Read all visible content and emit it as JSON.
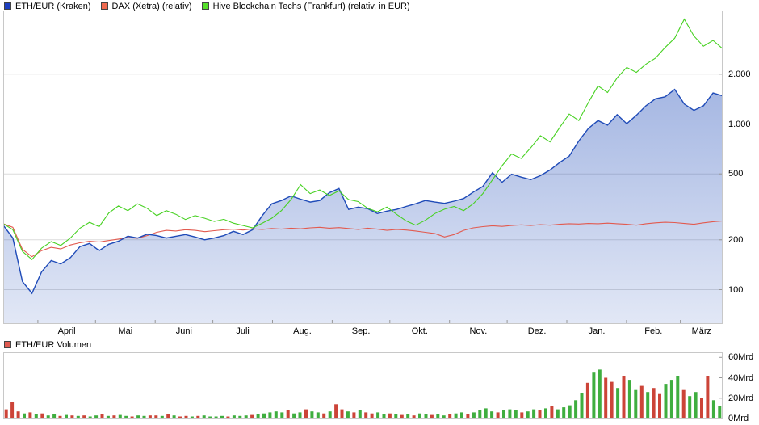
{
  "colors": {
    "grid": "#dcdcdc",
    "border": "#c8c8c8",
    "tick": "#999999"
  },
  "legend_main": {
    "items": [
      {
        "label": "ETH/EUR (Kraken)",
        "color": "#1d3fc0"
      },
      {
        "label": "DAX (Xetra) (relativ)",
        "color": "#f06a50"
      },
      {
        "label": "Hive Blockchain Techs (Frankfurt) (relativ, in EUR)",
        "color": "#55e02a"
      }
    ]
  },
  "legend_volume": {
    "items": [
      {
        "label": "ETH/EUR Volumen",
        "color": "#e05a50"
      }
    ]
  },
  "chart_data": [
    {
      "type": "line",
      "title": "",
      "scale": "log",
      "grid": "horizontal-only",
      "legend_position": "top",
      "y_axis": {
        "side": "right",
        "min": 62,
        "max": 4850,
        "ticks": [
          {
            "value": 100,
            "label": "100"
          },
          {
            "value": 200,
            "label": "200"
          },
          {
            "value": 500,
            "label": "500"
          },
          {
            "value": 1000,
            "label": "1.000"
          },
          {
            "value": 2000,
            "label": "2.000"
          }
        ]
      },
      "x_axis": {
        "labels": [
          {
            "label": "April",
            "pos": 0.0882
          },
          {
            "label": "Mai",
            "pos": 0.1698
          },
          {
            "label": "Juni",
            "pos": 0.2513
          },
          {
            "label": "Juli",
            "pos": 0.3329
          },
          {
            "label": "Aug.",
            "pos": 0.4158
          },
          {
            "label": "Sep.",
            "pos": 0.4973
          },
          {
            "label": "Okt.",
            "pos": 0.5789
          },
          {
            "label": "Nov.",
            "pos": 0.6604
          },
          {
            "label": "Dez.",
            "pos": 0.742
          },
          {
            "label": "Jan.",
            "pos": 0.8249
          },
          {
            "label": "Feb.",
            "pos": 0.9038
          },
          {
            "label": "März",
            "pos": 0.9706
          }
        ],
        "boundaries": [
          0.0481,
          0.1283,
          0.2112,
          0.2914,
          0.3743,
          0.4572,
          0.5374,
          0.6203,
          0.7005,
          0.7834,
          0.8663,
          0.9412
        ]
      },
      "series": [
        {
          "name": "ETH/EUR (Kraken)",
          "style": "area",
          "color": "#1f4bb8",
          "values": [
            245,
            205,
            112,
            95,
            128,
            150,
            143,
            156,
            182,
            190,
            172,
            188,
            196,
            210,
            205,
            216,
            212,
            205,
            210,
            215,
            208,
            200,
            205,
            212,
            225,
            215,
            230,
            280,
            330,
            345,
            368,
            352,
            338,
            345,
            385,
            408,
            305,
            315,
            308,
            288,
            298,
            305,
            318,
            330,
            345,
            338,
            332,
            342,
            355,
            388,
            420,
            508,
            445,
            498,
            478,
            462,
            488,
            528,
            585,
            640,
            790,
            940,
            1050,
            985,
            1140,
            1005,
            1130,
            1290,
            1420,
            1460,
            1620,
            1320,
            1210,
            1290,
            1540,
            1480
          ]
        },
        {
          "name": "DAX (Xetra) (relativ)",
          "style": "line",
          "color": "#e25a4f",
          "values": [
            250,
            238,
            175,
            158,
            172,
            180,
            176,
            186,
            192,
            196,
            194,
            198,
            202,
            206,
            204,
            212,
            222,
            228,
            226,
            230,
            228,
            224,
            227,
            230,
            232,
            229,
            233,
            231,
            234,
            232,
            235,
            233,
            236,
            238,
            235,
            237,
            234,
            231,
            235,
            232,
            228,
            231,
            229,
            226,
            222,
            218,
            208,
            215,
            228,
            236,
            240,
            243,
            241,
            244,
            246,
            244,
            247,
            245,
            248,
            250,
            249,
            251,
            250,
            252,
            250,
            248,
            245,
            250,
            253,
            255,
            254,
            251,
            248,
            253,
            257,
            260
          ]
        },
        {
          "name": "Hive Blockchain Techs (Frankfurt) (relativ, in EUR)",
          "style": "line",
          "color": "#47d122",
          "values": [
            250,
            230,
            170,
            152,
            178,
            195,
            185,
            205,
            235,
            255,
            240,
            290,
            320,
            300,
            330,
            310,
            280,
            300,
            285,
            265,
            280,
            270,
            258,
            266,
            252,
            244,
            236,
            252,
            270,
            300,
            350,
            430,
            380,
            400,
            370,
            395,
            350,
            340,
            310,
            295,
            315,
            285,
            260,
            245,
            262,
            288,
            306,
            318,
            300,
            330,
            380,
            460,
            560,
            660,
            620,
            720,
            850,
            780,
            950,
            1150,
            1050,
            1350,
            1700,
            1550,
            1900,
            2200,
            2050,
            2300,
            2500,
            2900,
            3300,
            4300,
            3400,
            2950,
            3200,
            2850
          ]
        }
      ]
    },
    {
      "type": "bar",
      "name": "ETH/EUR Volumen",
      "unit": "Mrd",
      "y_axis": {
        "side": "right",
        "min": 0,
        "max": 65,
        "ticks": [
          {
            "value": 0,
            "label": "0Mrd"
          },
          {
            "value": 20,
            "label": "20Mrd"
          },
          {
            "value": 40,
            "label": "40Mrd"
          },
          {
            "value": 60,
            "label": "60Mrd"
          }
        ]
      },
      "values": [
        9,
        16,
        7,
        5,
        6,
        4,
        5,
        3,
        4,
        2.5,
        3.5,
        3,
        2.5,
        3,
        2,
        3,
        4,
        2.5,
        3,
        3.5,
        2.5,
        2,
        3,
        2.5,
        3,
        3,
        2.5,
        4,
        3,
        2,
        2.5,
        2,
        2.5,
        3,
        2,
        2,
        2.5,
        2,
        3,
        2.5,
        3,
        3.5,
        4,
        5,
        6,
        7,
        6,
        8,
        5,
        6,
        9,
        7,
        6,
        5,
        7,
        14,
        9,
        7,
        6,
        8,
        6,
        5,
        6,
        4,
        5,
        4,
        3.5,
        4.5,
        3,
        5,
        4,
        3.5,
        4,
        3,
        4.5,
        5,
        6,
        4.5,
        6,
        8,
        10,
        7,
        6,
        8,
        9,
        8,
        6,
        7,
        9,
        8,
        10,
        12,
        9,
        11,
        13,
        18,
        25,
        35,
        45,
        48,
        40,
        36,
        30,
        42,
        38,
        28,
        32,
        26,
        30,
        24,
        34,
        38,
        42,
        28,
        22,
        26,
        20,
        42,
        18,
        12
      ],
      "colors": [
        "rrrgr",
        "grggrgrgrg",
        "grgrggrggr",
        "rgrgrrgrgg",
        "ggrgggrggg",
        "ggrggrggrg",
        "rrgrgrrggr",
        "grgrggrggr",
        "ggrggggrgg",
        "grggrgrggg",
        "ggrggrrgrg",
        "grgrrgggrg",
        "grrgg"
      ],
      "color_map": {
        "r": "#cc4438",
        "g": "#3fae3f"
      }
    }
  ]
}
